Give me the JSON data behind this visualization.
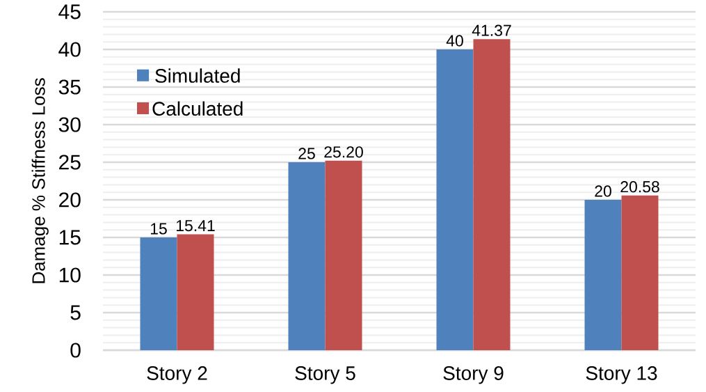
{
  "chart_data": {
    "type": "bar",
    "ylabel": "Damage % Stiffness Loss",
    "categories": [
      "Story 2",
      "Story 5",
      "Story 9",
      "Story 13"
    ],
    "series": [
      {
        "name": "Simulated",
        "color": "#4f81bd",
        "values": [
          15,
          25,
          40,
          20
        ],
        "value_labels": [
          "15",
          "25",
          "40",
          "20"
        ]
      },
      {
        "name": "Calculated",
        "color": "#c0504d",
        "values": [
          15.41,
          25.2,
          41.37,
          20.58
        ],
        "value_labels": [
          "15.41",
          "25.20",
          "41.37",
          "20.58"
        ]
      }
    ],
    "ylim": [
      0,
      45
    ],
    "yticks": [
      0,
      5,
      10,
      15,
      20,
      25,
      30,
      35,
      40,
      45
    ],
    "grid": "y",
    "legend": "top left"
  }
}
